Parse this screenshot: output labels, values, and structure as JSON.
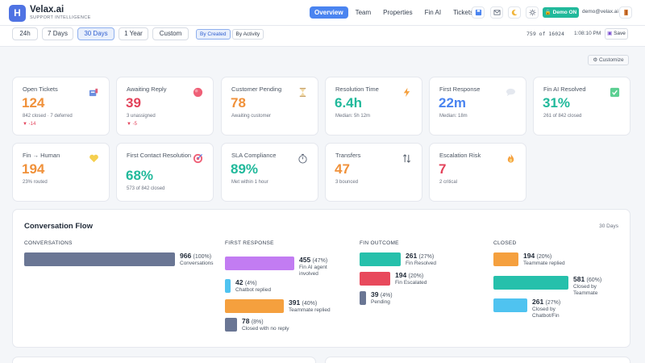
{
  "brand": {
    "name": "Velax.ai",
    "subtitle": "SUPPORT INTELLIGENCE",
    "logo_letter": "H"
  },
  "nav": {
    "tabs": [
      "Overview",
      "Team",
      "Properties",
      "Fin AI",
      "Tickets"
    ],
    "active": "Overview"
  },
  "header_icons": [
    "save-icon",
    "mail-icon",
    "moon-icon",
    "sun-icon",
    "exit-icon"
  ],
  "demo_badge": "Demo ON",
  "user_email": "demo@velax.ai",
  "filters": {
    "ranges": [
      "24h",
      "7 Days",
      "30 Days",
      "1 Year",
      "Custom"
    ],
    "active_range": "30 Days",
    "modes": [
      "By Created",
      "By Activity"
    ],
    "active_mode": "By Created",
    "counter": "759 of 16024",
    "time": "1:08:10 PM",
    "save_label": "Save"
  },
  "customize_label": "Customize",
  "cards": [
    {
      "label": "Open Tickets",
      "value": "124",
      "sub": "842 closed · 7 deferred",
      "delta": "▼ -14",
      "color": "#f0913a",
      "icon": "inbox-icon"
    },
    {
      "label": "Awaiting Reply",
      "value": "39",
      "sub": "3 unassigned",
      "delta": "▼ -5",
      "color": "#e3425a",
      "icon": "red-dot-icon"
    },
    {
      "label": "Customer Pending",
      "value": "78",
      "sub": "Awaiting customer",
      "color": "#f0913a",
      "icon": "hourglass-icon"
    },
    {
      "label": "Resolution Time",
      "value": "6.4h",
      "sub": "Median: 5h 12m",
      "color": "#21b99b",
      "icon": "lightning-icon"
    },
    {
      "label": "First Response",
      "value": "22m",
      "sub": "Median: 18m",
      "color": "#4a84f0",
      "icon": "chat-bubble-icon"
    },
    {
      "label": "Fin AI Resolved",
      "value": "31%",
      "sub": "261 of 842 closed",
      "color": "#21b99b",
      "icon": "checkbox-icon"
    },
    {
      "label": "Fin → Human",
      "value": "194",
      "sub": "23% routed",
      "color": "#f0913a",
      "icon": "heart-icon"
    },
    {
      "label": "First Contact Resolution",
      "value": "68%",
      "sub": "573 of 842 closed",
      "color": "#21b99b",
      "icon": "target-icon"
    },
    {
      "label": "SLA Compliance",
      "value": "89%",
      "sub": "Met within 1 hour",
      "color": "#21b99b",
      "icon": "timer-icon"
    },
    {
      "label": "Transfers",
      "value": "47",
      "sub": "3 bounced",
      "color": "#f0913a",
      "icon": "transfer-arrows-icon"
    },
    {
      "label": "Escalation Risk",
      "value": "7",
      "sub": "2 critical",
      "color": "#e3425a",
      "icon": "flame-icon"
    }
  ],
  "flow": {
    "title": "Conversation Flow",
    "period": "30 Days",
    "columns": [
      {
        "heading": "CONVERSATIONS",
        "items": [
          {
            "count": "966",
            "pct": "(100%)",
            "label": "Conversations",
            "color": "#6a7694",
            "share": 1.0
          }
        ]
      },
      {
        "heading": "FIRST RESPONSE",
        "items": [
          {
            "count": "455",
            "pct": "(47%)",
            "label": "Fin AI agent involved",
            "color": "#c27cf2",
            "share": 0.47
          },
          {
            "count": "42",
            "pct": "(4%)",
            "label": "Chatbot replied",
            "color": "#4fc3f0",
            "share": 0.04
          },
          {
            "count": "391",
            "pct": "(40%)",
            "label": "Teammate replied",
            "color": "#f5a03e",
            "share": 0.4
          },
          {
            "count": "78",
            "pct": "(8%)",
            "label": "Closed with no reply",
            "color": "#6a7694",
            "share": 0.08
          }
        ]
      },
      {
        "heading": "FIN OUTCOME",
        "items": [
          {
            "count": "261",
            "pct": "(27%)",
            "label": "Fin Resolved",
            "color": "#26c0ab",
            "share": 0.27
          },
          {
            "count": "194",
            "pct": "(20%)",
            "label": "Fin Escalated",
            "color": "#e8495c",
            "share": 0.2
          },
          {
            "count": "39",
            "pct": "(4%)",
            "label": "Pending",
            "color": "#6a7694",
            "share": 0.04
          }
        ]
      },
      {
        "heading": "CLOSED",
        "items": [
          {
            "count": "194",
            "pct": "(20%)",
            "label": "Teammate replied",
            "color": "#f5a03e",
            "share": 0.2
          },
          {
            "count": "581",
            "pct": "(60%)",
            "label": "Closed by Teammate",
            "color": "#26c0ab",
            "share": 0.6
          },
          {
            "count": "261",
            "pct": "(27%)",
            "label": "Closed by Chatbot/Fin",
            "color": "#4fc3f0",
            "share": 0.27
          }
        ]
      }
    ]
  }
}
